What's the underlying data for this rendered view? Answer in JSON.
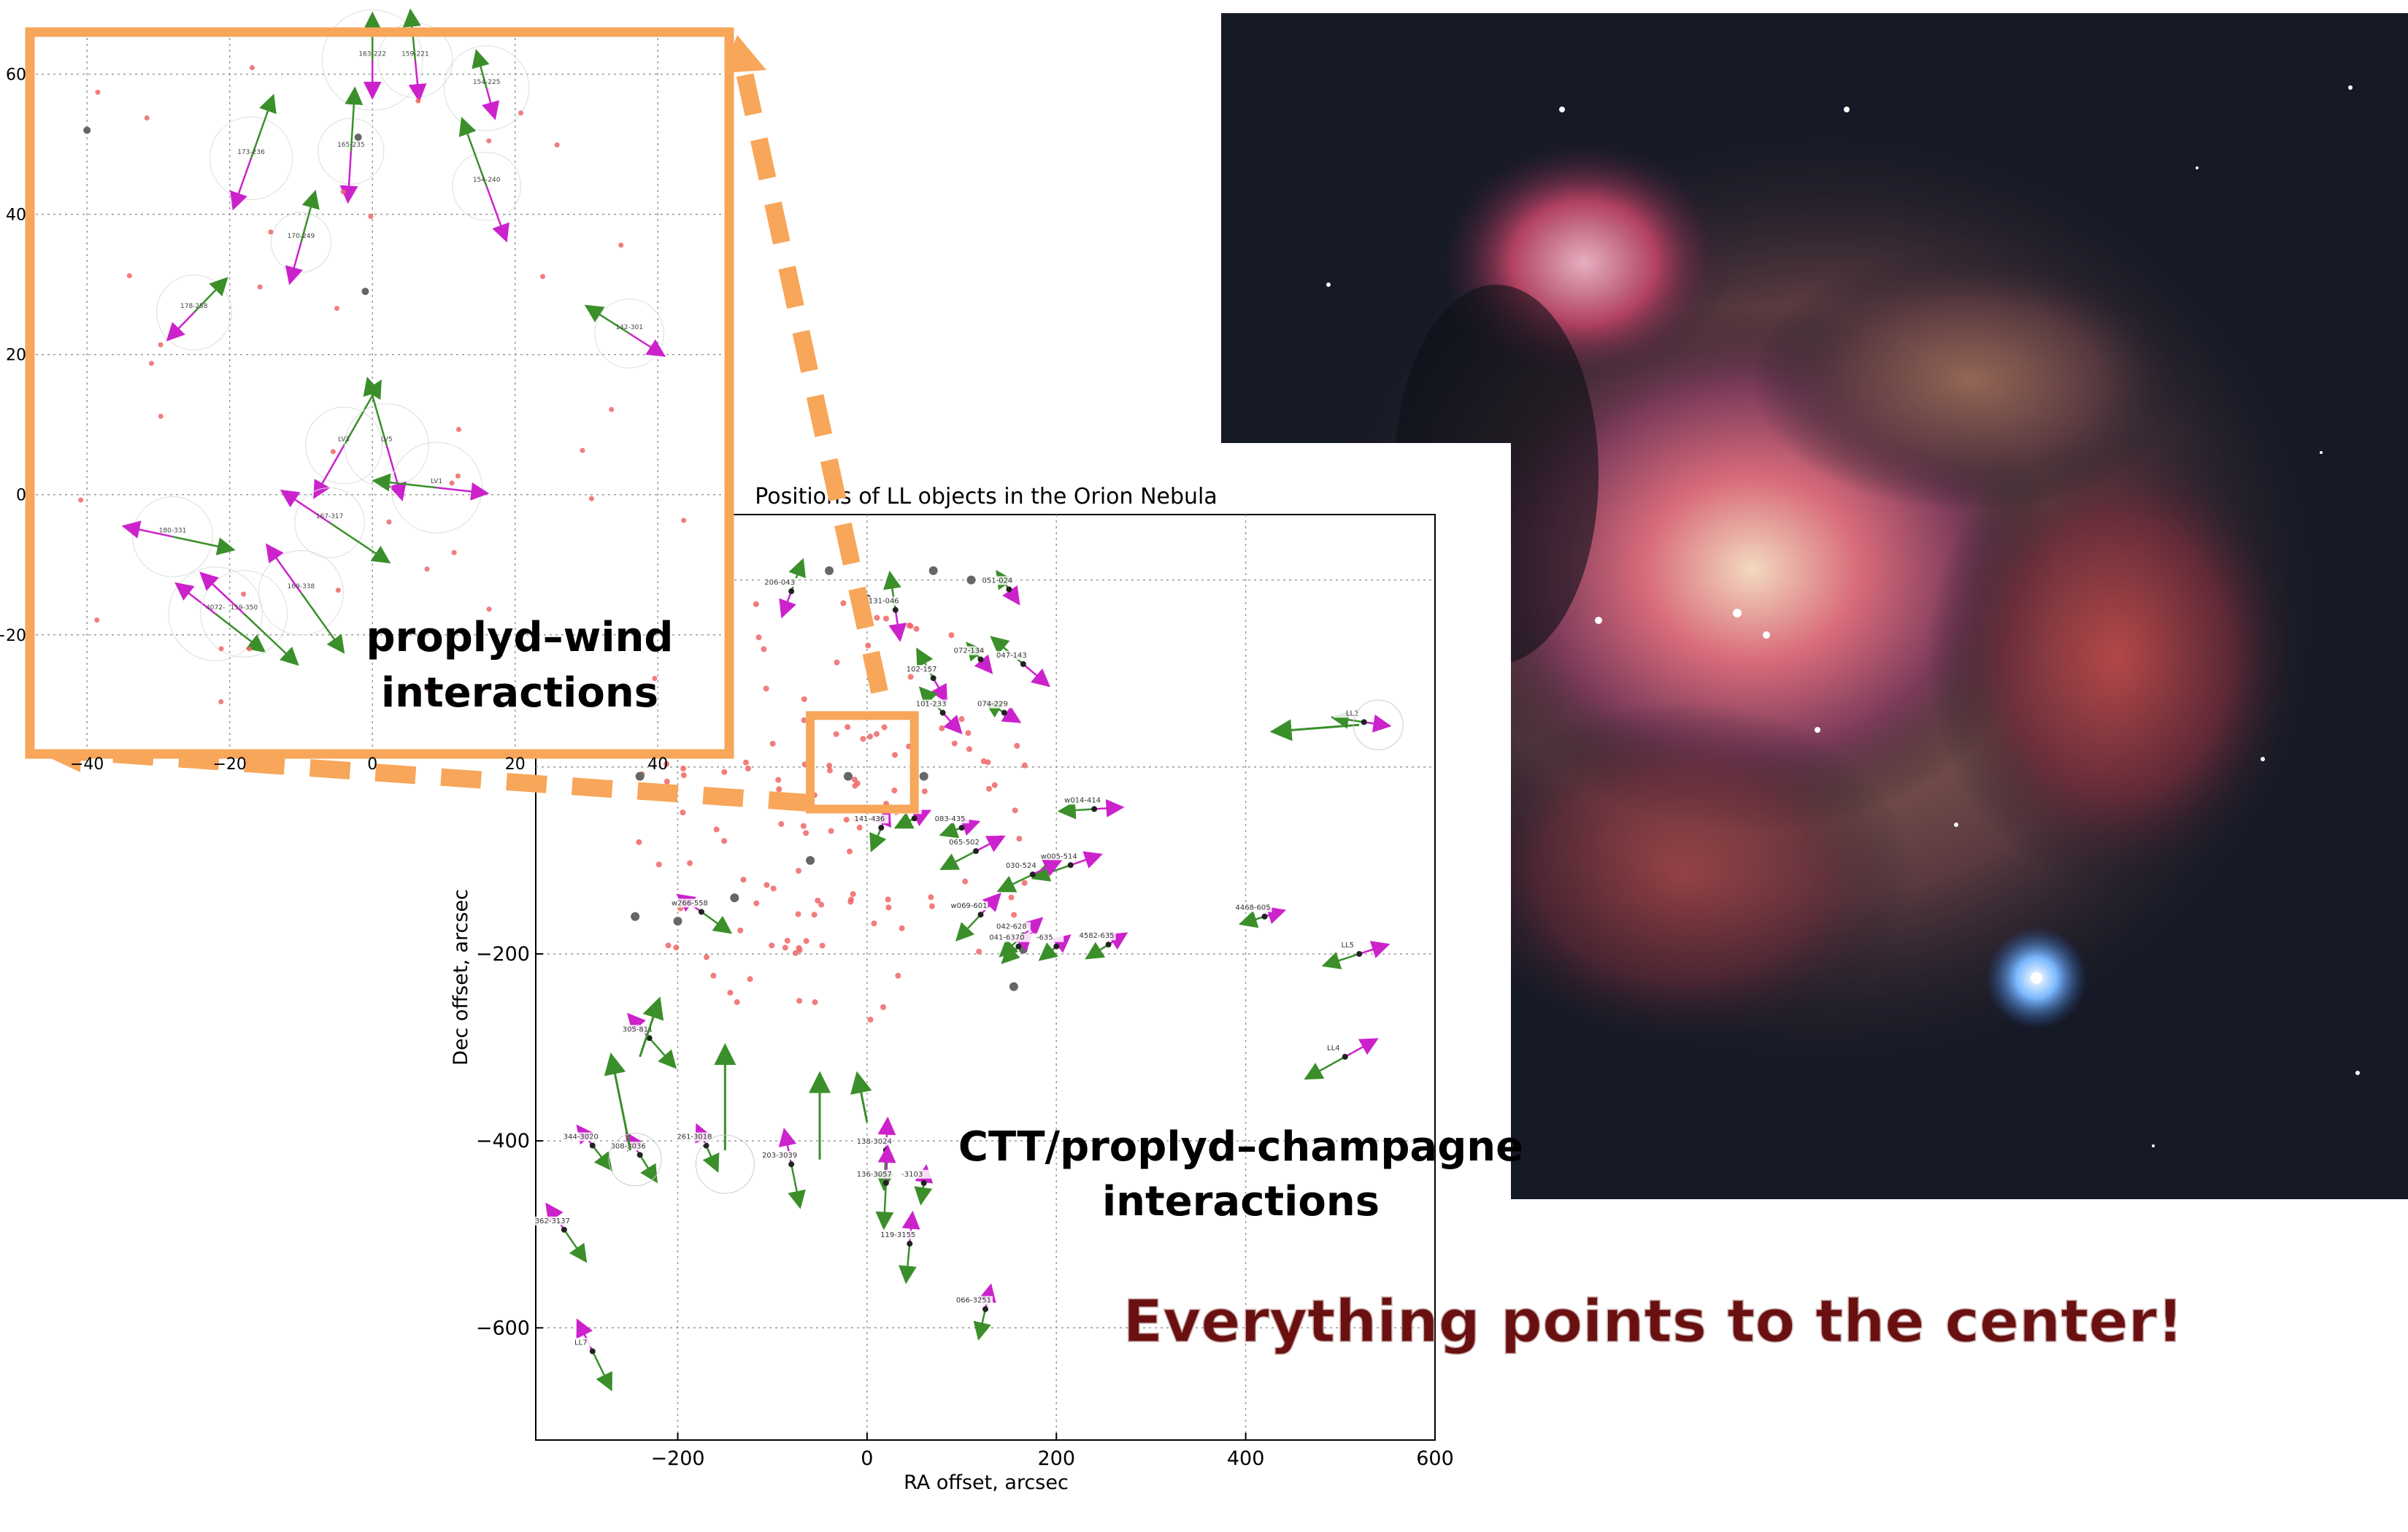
{
  "main_plot": {
    "title": "Positions of LL objects in the Orion Nebula",
    "xlabel": "RA offset, arcsec",
    "ylabel": "Dec offset, arcsec",
    "xlim": [
      -350,
      600
    ],
    "ylim": [
      -720,
      270
    ],
    "xticks": [
      -200,
      0,
      200,
      400,
      600
    ],
    "yticks": [
      -600,
      -400,
      -200
    ],
    "ytick_labels": [
      "−600",
      "−400",
      "−200"
    ],
    "xtick_labels": [
      "−200",
      "0",
      "200",
      "400",
      "600"
    ],
    "grid": "dotted"
  },
  "inset_plot": {
    "xlim": [
      -48,
      50
    ],
    "ylim": [
      -37,
      66
    ],
    "xticks": [
      -40,
      -20,
      0,
      20,
      40
    ],
    "xtick_labels": [
      "−40",
      "−20",
      "0",
      "20",
      "40"
    ],
    "yticks": [
      -20,
      0,
      20,
      40,
      60
    ],
    "ytick_labels": [
      "−20",
      "0",
      "20",
      "40",
      "60"
    ],
    "zoom_box_data": [
      -60,
      -45,
      50,
      55
    ],
    "grid": "dotted"
  },
  "annotations": {
    "proplyd_wind_line1": "proplyd–wind",
    "proplyd_wind_line2": "interactions",
    "ctt_line1": "CTT/proplyd–champagne",
    "ctt_line2": "interactions",
    "center_note": "Everything points to the center!"
  },
  "colors": {
    "inset_frame": "#f7a65a",
    "arrow_green": "#3a8f2a",
    "arrow_magenta": "#cc22cc",
    "point_red": "#ee6666",
    "point_gray": "#666666",
    "center_text": "#6b1010"
  },
  "chart_data": {
    "type": "scatter",
    "labeled_objects": [
      {
        "label": "206-043",
        "x": -80,
        "y": 188
      },
      {
        "label": "131-046",
        "x": 30,
        "y": 168
      },
      {
        "label": "051-024",
        "x": 150,
        "y": 190
      },
      {
        "label": "072-134",
        "x": 120,
        "y": 115
      },
      {
        "label": "047-143",
        "x": 165,
        "y": 110
      },
      {
        "label": "102-157",
        "x": 70,
        "y": 95
      },
      {
        "label": "101-233",
        "x": 80,
        "y": 58
      },
      {
        "label": "074-229",
        "x": 145,
        "y": 58
      },
      {
        "label": "LL2",
        "x": 525,
        "y": 48
      },
      {
        "label": "w014-414",
        "x": 240,
        "y": -45
      },
      {
        "label": "117-421",
        "x": 50,
        "y": -55
      },
      {
        "label": "141-436",
        "x": 15,
        "y": -65
      },
      {
        "label": "083-435",
        "x": 100,
        "y": -65
      },
      {
        "label": "065-502",
        "x": 115,
        "y": -90
      },
      {
        "label": "w005-514",
        "x": 215,
        "y": -105
      },
      {
        "label": "030-524",
        "x": 175,
        "y": -115
      },
      {
        "label": "w266-558",
        "x": -175,
        "y": -155
      },
      {
        "label": "w069-601",
        "x": 120,
        "y": -158
      },
      {
        "label": "4468-605",
        "x": 420,
        "y": -160
      },
      {
        "label": "042-628",
        "x": 165,
        "y": -180
      },
      {
        "label": "041-6370",
        "x": 160,
        "y": -192
      },
      {
        "label": "-635",
        "x": 200,
        "y": -192
      },
      {
        "label": "4582-635",
        "x": 255,
        "y": -190
      },
      {
        "label": "LL5",
        "x": 520,
        "y": -200
      },
      {
        "label": "305-811",
        "x": -230,
        "y": -290
      },
      {
        "label": "LL4",
        "x": 505,
        "y": -310
      },
      {
        "label": "344-3020",
        "x": -290,
        "y": -405
      },
      {
        "label": "261-3018",
        "x": -170,
        "y": -405
      },
      {
        "label": "308-3036",
        "x": -240,
        "y": -415
      },
      {
        "label": "138-3024",
        "x": 20,
        "y": -410
      },
      {
        "label": "203-3039",
        "x": -80,
        "y": -425
      },
      {
        "label": "136-3057",
        "x": 20,
        "y": -445
      },
      {
        "label": "-3103",
        "x": 60,
        "y": -445
      },
      {
        "label": "362-3137",
        "x": -320,
        "y": -495
      },
      {
        "label": "119-3155",
        "x": 45,
        "y": -510
      },
      {
        "label": "066-3251",
        "x": 125,
        "y": -580
      },
      {
        "label": "LL7",
        "x": -290,
        "y": -625
      }
    ],
    "inset_labeled_objects": [
      {
        "label": "163-222",
        "x": 0,
        "y": 62
      },
      {
        "label": "159-221",
        "x": 6,
        "y": 62
      },
      {
        "label": "154-225",
        "x": 16,
        "y": 58
      },
      {
        "label": "173-236",
        "x": -17,
        "y": 48
      },
      {
        "label": "165-235",
        "x": -3,
        "y": 49
      },
      {
        "label": "154-240",
        "x": 16,
        "y": 44
      },
      {
        "label": "170-249",
        "x": -10,
        "y": 36
      },
      {
        "label": "178-258",
        "x": -25,
        "y": 26
      },
      {
        "label": "142-301",
        "x": 36,
        "y": 23
      },
      {
        "label": "LV3",
        "x": -4,
        "y": 7
      },
      {
        "label": "LV5",
        "x": 2,
        "y": 7
      },
      {
        "label": "LV1",
        "x": 9,
        "y": 1
      },
      {
        "label": "180-331",
        "x": -28,
        "y": -6
      },
      {
        "label": "167-317",
        "x": -6,
        "y": -4
      },
      {
        "label": "169-338",
        "x": -10,
        "y": -14
      },
      {
        "label": "4072-",
        "x": -22,
        "y": -17
      },
      {
        "label": "159-350",
        "x": -18,
        "y": -17
      }
    ]
  }
}
